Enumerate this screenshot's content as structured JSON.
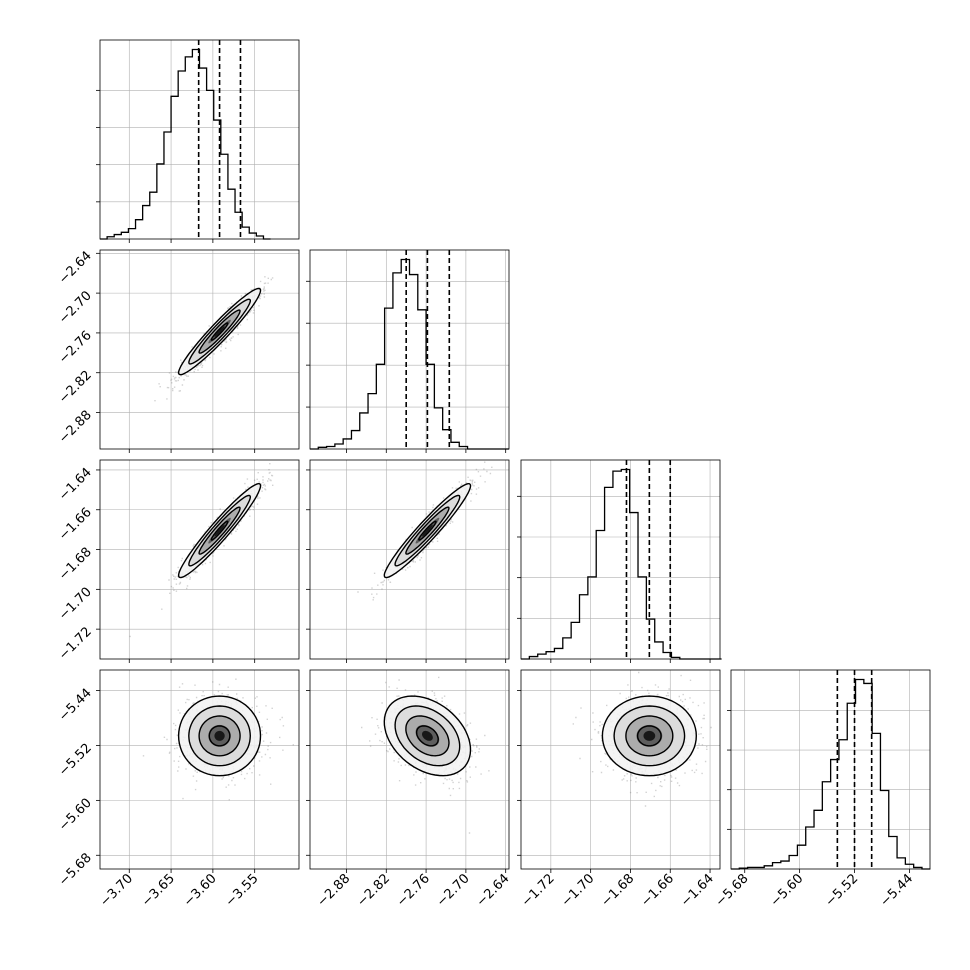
{
  "chart_data": {
    "type": "corner",
    "grid": true,
    "legend": "none",
    "colors": {
      "line": "#000000",
      "grid": "#b0b0b0",
      "points": "#7f7f7f"
    },
    "parameters": [
      {
        "range": [
          -3.735,
          -3.497
        ],
        "ticks": [
          -3.7,
          -3.65,
          -3.6,
          -3.55
        ],
        "tick_labels": [
          "−3.70",
          "−3.65",
          "−3.60",
          "−3.55"
        ],
        "quantiles": [
          -3.617,
          -3.592,
          -3.567
        ],
        "hist": {
          "bin_edges_start": -3.735,
          "bin_width": 0.0085,
          "counts": [
            0,
            3,
            6,
            9,
            14,
            26,
            45,
            63,
            101,
            144,
            192,
            226,
            245,
            255,
            230,
            200,
            160,
            114,
            67,
            36,
            16,
            8,
            4,
            0
          ],
          "y_ticks": [
            50,
            100,
            150,
            200
          ]
        }
      },
      {
        "range": [
          -2.935,
          -2.635
        ],
        "ticks": [
          -2.88,
          -2.82,
          -2.76,
          -2.7,
          -2.64
        ],
        "tick_labels": [
          "−2.88",
          "−2.82",
          "−2.76",
          "−2.70",
          "−2.64"
        ],
        "quantiles": [
          -2.79,
          -2.758,
          -2.725
        ],
        "hist": {
          "bin_edges_start": -2.935,
          "bin_width": 0.0125,
          "counts": [
            0,
            2,
            3,
            6,
            12,
            22,
            43,
            66,
            101,
            168,
            210,
            226,
            208,
            166,
            101,
            49,
            23,
            8,
            3,
            0,
            0,
            0,
            0,
            0
          ],
          "y_ticks": [
            50,
            100,
            150,
            200
          ]
        }
      },
      {
        "range": [
          -1.735,
          -1.635
        ],
        "ticks": [
          -1.72,
          -1.7,
          -1.68,
          -1.66,
          -1.64
        ],
        "tick_labels": [
          "−1.72",
          "−1.70",
          "−1.68",
          "−1.66",
          "−1.64"
        ],
        "quantiles": [
          -1.682,
          -1.6705,
          -1.66
        ],
        "hist": {
          "bin_edges_start": -1.735,
          "bin_width": 0.0042,
          "counts": [
            0,
            3,
            6,
            9,
            13,
            26,
            45,
            79,
            101,
            158,
            211,
            231,
            233,
            180,
            101,
            49,
            21,
            8,
            2,
            0,
            0,
            0,
            0,
            0
          ],
          "y_ticks": [
            50,
            100,
            150,
            200
          ]
        }
      },
      {
        "range": [
          -5.7,
          -5.41
        ],
        "ticks": [
          -5.68,
          -5.6,
          -5.52,
          -5.44
        ],
        "tick_labels": [
          "−5.68",
          "−5.60",
          "−5.52",
          "−5.44"
        ],
        "quantiles": [
          -5.545,
          -5.52,
          -5.495
        ],
        "hist": {
          "bin_edges_start": -5.7,
          "bin_width": 0.0121,
          "counts": [
            0,
            1,
            2,
            2,
            4,
            8,
            10,
            17,
            30,
            53,
            74,
            110,
            138,
            163,
            209,
            239,
            234,
            171,
            99,
            41,
            14,
            6,
            2,
            0
          ],
          "y_ticks": [
            50,
            100,
            150,
            200
          ]
        }
      }
    ],
    "pairs": [
      {
        "row": 1,
        "col": 0,
        "center": [
          -3.592,
          -2.758
        ],
        "sd": [
          0.0245,
          0.0325
        ],
        "corr": 0.955,
        "contour_levels": [
          0.4,
          1.0,
          1.5,
          2.0
        ]
      },
      {
        "row": 2,
        "col": 0,
        "center": [
          -3.592,
          -1.6705
        ],
        "sd": [
          0.0245,
          0.0118
        ],
        "corr": 0.955,
        "contour_levels": [
          0.4,
          1.0,
          1.5,
          2.0
        ]
      },
      {
        "row": 2,
        "col": 1,
        "center": [
          -2.758,
          -1.6705
        ],
        "sd": [
          0.0325,
          0.0118
        ],
        "corr": 0.955,
        "contour_levels": [
          0.4,
          1.0,
          1.5,
          2.0
        ]
      },
      {
        "row": 3,
        "col": 0,
        "center": [
          -3.592,
          -5.506
        ],
        "sd": [
          0.0245,
          0.029
        ],
        "corr": 0.0,
        "contour_levels": [
          0.5,
          1.0,
          1.5,
          2.0
        ]
      },
      {
        "row": 3,
        "col": 1,
        "center": [
          -2.758,
          -5.506
        ],
        "sd": [
          0.0325,
          0.029
        ],
        "corr": -0.35,
        "contour_levels": [
          0.5,
          1.0,
          1.5,
          2.0
        ]
      },
      {
        "row": 3,
        "col": 2,
        "center": [
          -1.6705,
          -5.506
        ],
        "sd": [
          0.0118,
          0.029
        ],
        "corr": 0.0,
        "contour_levels": [
          0.5,
          1.0,
          1.5,
          2.0
        ]
      }
    ]
  }
}
